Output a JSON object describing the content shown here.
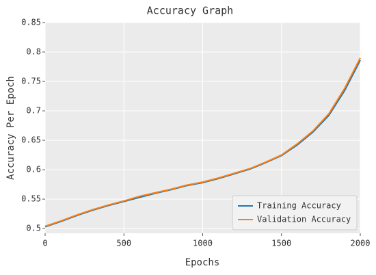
{
  "chart_data": {
    "type": "line",
    "title": "Accuracy Graph",
    "x_label": "Epochs",
    "y_label": "Accuracy Per Epoch",
    "x": [
      0,
      100,
      200,
      300,
      400,
      500,
      600,
      700,
      800,
      900,
      1000,
      1100,
      1200,
      1300,
      1400,
      1500,
      1600,
      1700,
      1800,
      1900,
      2000
    ],
    "series": [
      {
        "name": "Training Accuracy",
        "color": "#1f77b4",
        "values": [
          0.503,
          0.512,
          0.522,
          0.531,
          0.539,
          0.546,
          0.553,
          0.56,
          0.566,
          0.573,
          0.578,
          0.585,
          0.593,
          0.601,
          0.612,
          0.624,
          0.642,
          0.664,
          0.692,
          0.734,
          0.786
        ]
      },
      {
        "name": "Validation Accuracy",
        "color": "#ff7f0e",
        "values": [
          0.504,
          0.513,
          0.523,
          0.532,
          0.54,
          0.547,
          0.555,
          0.561,
          0.567,
          0.574,
          0.579,
          0.586,
          0.594,
          0.602,
          0.613,
          0.625,
          0.644,
          0.666,
          0.695,
          0.738,
          0.79
        ]
      }
    ],
    "xlim": [
      0,
      2000
    ],
    "xticks": [
      0,
      500,
      1000,
      1500,
      2000
    ],
    "ylim": [
      0.492,
      0.85
    ],
    "yticks": [
      0.5,
      0.55,
      0.6,
      0.65,
      0.7,
      0.75,
      0.8,
      0.85
    ],
    "grid": true,
    "legend": "lower right"
  }
}
